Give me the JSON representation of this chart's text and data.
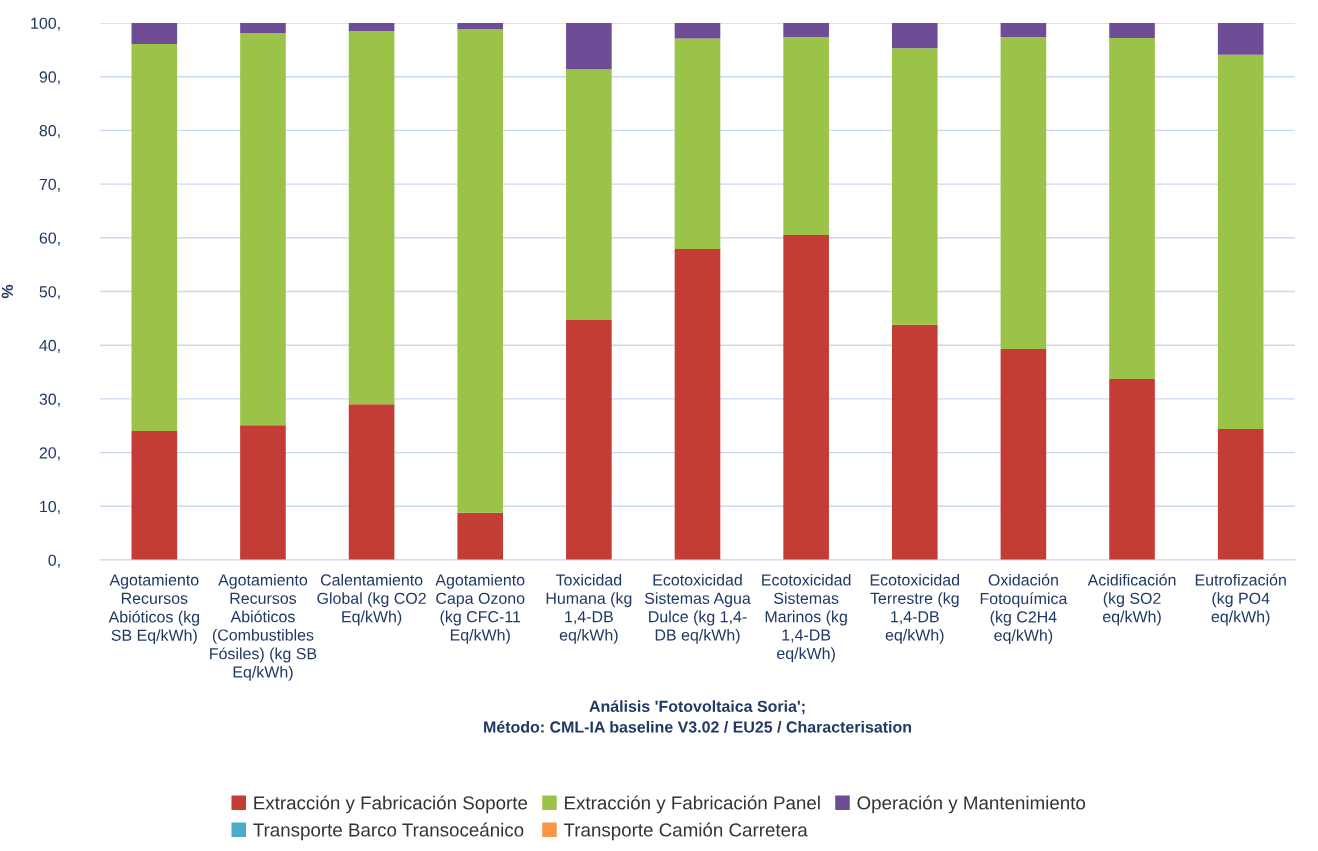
{
  "chart_data": {
    "type": "bar",
    "stacked": true,
    "xlabel": "Análisis 'Fotovoltaica Soria';\nMétodo: CML-IA baseline V3.02 / EU25 / Characterisation",
    "ylabel": "%",
    "categories": [
      "Agotamiento\nRecursos\nAbióticos (kg\nSB Eq/kWh)",
      "Agotamiento\nRecursos\nAbióticos\n(Combustibles\nFósiles) (kg SB\nEq/kWh)",
      "Calentamiento\nGlobal (kg CO2\nEq/kWh)",
      "Agotamiento\nCapa Ozono\n(kg CFC-11\nEq/kWh)",
      "Toxicidad\nHumana (kg\n1,4-DB\neq/kWh)",
      "Ecotoxicidad\nSistemas Agua\nDulce (kg 1,4-\nDB eq/kWh)",
      "Ecotoxicidad\nSistemas\nMarinos (kg\n1,4-DB\neq/kWh)",
      "Ecotoxicidad\nTerrestre (kg\n1,4-DB\neq/kWh)",
      "Oxidación\nFotoquímica\n(kg C2H4\neq/kWh)",
      "Acidificación\n(kg SO2\neq/kWh)",
      "Eutrofización\n(kg PO4\neq/kWh)"
    ],
    "series": [
      {
        "name": "Extracción y Fabricación Soporte",
        "color": "#c43c36",
        "values": [
          24.0,
          25.1,
          29.0,
          8.8,
          44.7,
          57.9,
          60.5,
          43.8,
          39.3,
          33.7,
          24.4
        ]
      },
      {
        "name": "Extracción y Fabricación Panel",
        "color": "#9bc347",
        "values": [
          72.1,
          73.0,
          69.5,
          90.1,
          46.7,
          39.2,
          36.9,
          51.5,
          58.1,
          63.5,
          69.7
        ]
      },
      {
        "name": "Operación y Mantenimiento",
        "color": "#6f4c96",
        "values": [
          3.9,
          1.9,
          1.5,
          1.1,
          8.6,
          2.9,
          2.6,
          4.7,
          2.6,
          2.8,
          5.9
        ]
      },
      {
        "name": "Transporte Barco Transoceánico",
        "color": "#4bacc6",
        "values": [
          0,
          0,
          0,
          0,
          0,
          0,
          0,
          0,
          0,
          0,
          0
        ]
      },
      {
        "name": "Transporte Camión Carretera",
        "color": "#f79646",
        "values": [
          0,
          0,
          0,
          0,
          0,
          0,
          0,
          0,
          0,
          0,
          0
        ]
      }
    ],
    "ylim": [
      0,
      100
    ],
    "yticks": [
      {
        "value": 0,
        "label": "0,"
      },
      {
        "value": 10,
        "label": "10,"
      },
      {
        "value": 20,
        "label": "20,"
      },
      {
        "value": 30,
        "label": "30,"
      },
      {
        "value": 40,
        "label": "40,"
      },
      {
        "value": 50,
        "label": "50,"
      },
      {
        "value": 60,
        "label": "60,"
      },
      {
        "value": 70,
        "label": "70,"
      },
      {
        "value": 80,
        "label": "80,"
      },
      {
        "value": 90,
        "label": "90,"
      },
      {
        "value": 100,
        "label": "100,"
      }
    ],
    "grid": "y",
    "legend": "bottom"
  }
}
